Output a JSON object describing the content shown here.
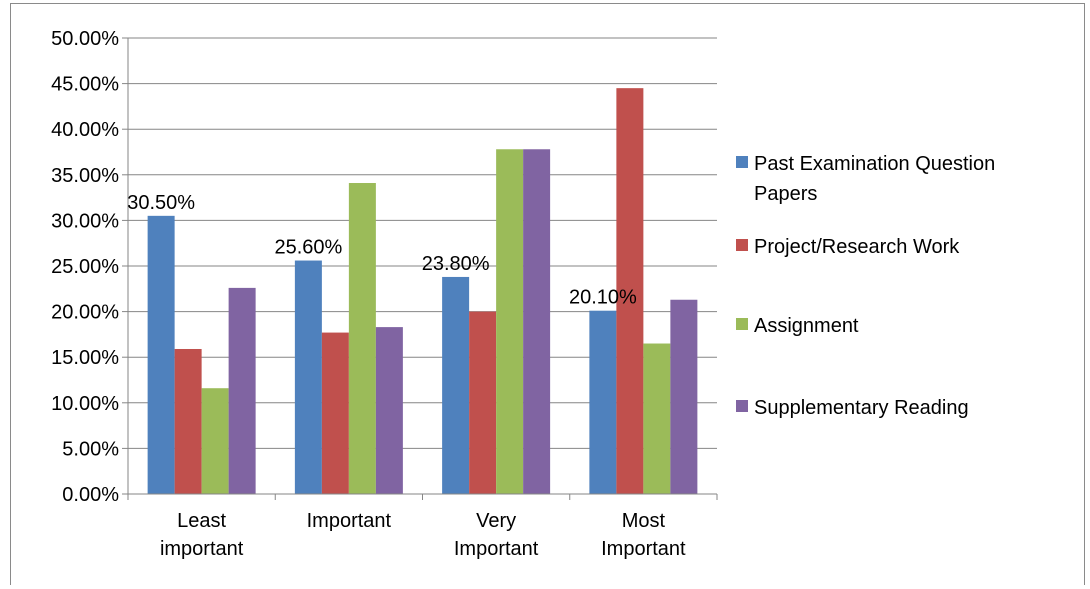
{
  "chart_data": {
    "type": "bar",
    "categories": [
      [
        "Least",
        "important"
      ],
      [
        "Important"
      ],
      [
        "Very",
        "Important"
      ],
      [
        "Most",
        "Important"
      ]
    ],
    "series": [
      {
        "name": [
          "Past Examination Question",
          "Papers"
        ],
        "color": "#4F81BD",
        "values": [
          30.5,
          25.6,
          23.8,
          20.1
        ]
      },
      {
        "name": [
          "Project/Research Work"
        ],
        "color": "#C0504D",
        "values": [
          15.9,
          17.7,
          20.0,
          44.5
        ]
      },
      {
        "name": [
          "Assignment"
        ],
        "color": "#9BBB59",
        "values": [
          11.6,
          34.1,
          37.8,
          16.5
        ]
      },
      {
        "name": [
          "Supplementary Reading"
        ],
        "color": "#8064A2",
        "values": [
          22.6,
          18.3,
          37.8,
          21.3
        ]
      }
    ],
    "data_labels": [
      "30.50%",
      "25.60%",
      "23.80%",
      "20.10%"
    ],
    "ylim": [
      0,
      50
    ],
    "yticks": [
      "0.00%",
      "5.00%",
      "10.00%",
      "15.00%",
      "20.00%",
      "25.00%",
      "30.00%",
      "35.00%",
      "40.00%",
      "45.00%",
      "50.00%"
    ],
    "grid": true,
    "legend_position": "right",
    "title": "",
    "xlabel": "",
    "ylabel": ""
  }
}
